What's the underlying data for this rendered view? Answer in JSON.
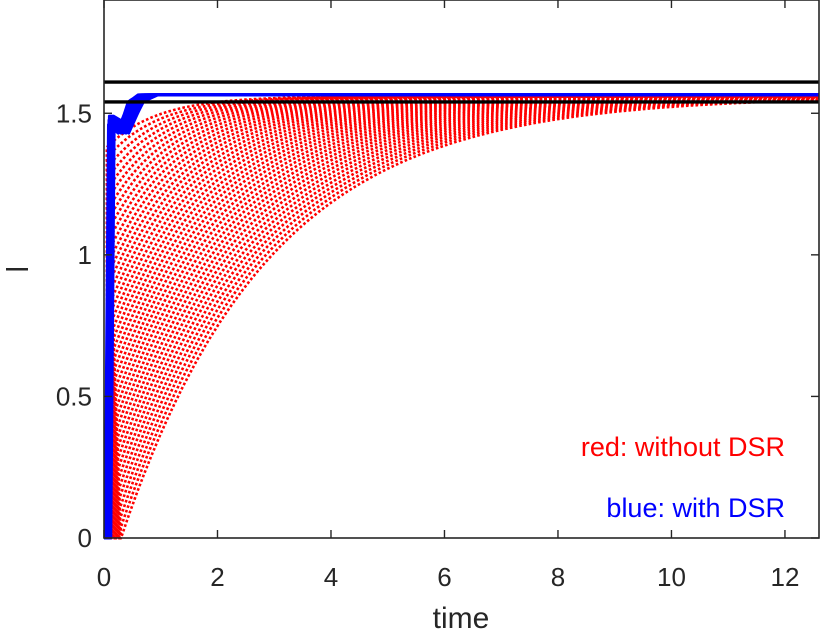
{
  "chart_data": {
    "type": "line",
    "title": "",
    "xlabel": "time",
    "ylabel": "",
    "xlim": [
      0,
      12.6
    ],
    "ylim": [
      0,
      1.9
    ],
    "xticks": [
      0,
      2,
      4,
      6,
      8,
      10,
      12
    ],
    "yticks": [
      0,
      0.5,
      1,
      1.5
    ],
    "xtick_labels": [
      "0",
      "2",
      "4",
      "6",
      "8",
      "10",
      "12"
    ],
    "ytick_labels": [
      "0",
      "0.5",
      "1",
      "1.5"
    ],
    "grid": false,
    "reference_lines": [
      {
        "y": 1.61,
        "color": "#000000"
      },
      {
        "y": 1.54,
        "color": "#000000"
      }
    ],
    "series": [
      {
        "group": "without",
        "color": "#ff0000",
        "style": "dotted",
        "count": 40,
        "asymptote": 1.56,
        "start_time_range": [
          0.05,
          0.3
        ],
        "time_constant_range": [
          0.9,
          2.6
        ],
        "initial_jump_range": [
          1.38,
          0.0
        ]
      },
      {
        "group": "with",
        "color": "#0000ff",
        "style": "solid",
        "count": 14,
        "asymptote": 1.565,
        "start_time_range": [
          0.02,
          0.12
        ],
        "plateau_value": 1.46,
        "plateau_end_range": [
          0.25,
          0.45
        ],
        "settle_time_range": [
          0.6,
          0.95
        ]
      }
    ],
    "annotations": [
      {
        "text": "red: without DSR",
        "color": "#ff0000",
        "x": 12.0,
        "y": 0.29
      },
      {
        "text": "blue: with DSR",
        "color": "#0000ff",
        "x": 12.0,
        "y": 0.075
      }
    ]
  }
}
